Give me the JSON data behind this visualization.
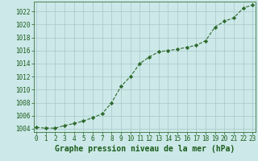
{
  "x": [
    0,
    1,
    2,
    3,
    4,
    5,
    6,
    7,
    8,
    9,
    10,
    11,
    12,
    13,
    14,
    15,
    16,
    17,
    18,
    19,
    20,
    21,
    22,
    23
  ],
  "y": [
    1004.2,
    1004.1,
    1004.1,
    1004.5,
    1004.8,
    1005.2,
    1005.7,
    1006.3,
    1008.0,
    1010.5,
    1012.0,
    1014.0,
    1015.0,
    1015.8,
    1016.0,
    1016.2,
    1016.5,
    1016.8,
    1017.5,
    1019.6,
    1020.5,
    1021.0,
    1022.5,
    1023.0
  ],
  "line_color": "#2d6a2d",
  "marker": "D",
  "marker_size": 2.2,
  "bg_color": "#cce8e8",
  "grid_color": "#aac8c8",
  "xlabel": "Graphe pression niveau de la mer (hPa)",
  "xlabel_color": "#1a5c1a",
  "xlabel_fontsize": 7,
  "tick_color": "#1a5c1a",
  "tick_fontsize": 5.5,
  "ylim": [
    1003.5,
    1023.5
  ],
  "yticks": [
    1004,
    1006,
    1008,
    1010,
    1012,
    1014,
    1016,
    1018,
    1020,
    1022
  ],
  "xlim": [
    -0.3,
    23.3
  ],
  "xticks": [
    0,
    1,
    2,
    3,
    4,
    5,
    6,
    7,
    8,
    9,
    10,
    11,
    12,
    13,
    14,
    15,
    16,
    17,
    18,
    19,
    20,
    21,
    22,
    23
  ]
}
